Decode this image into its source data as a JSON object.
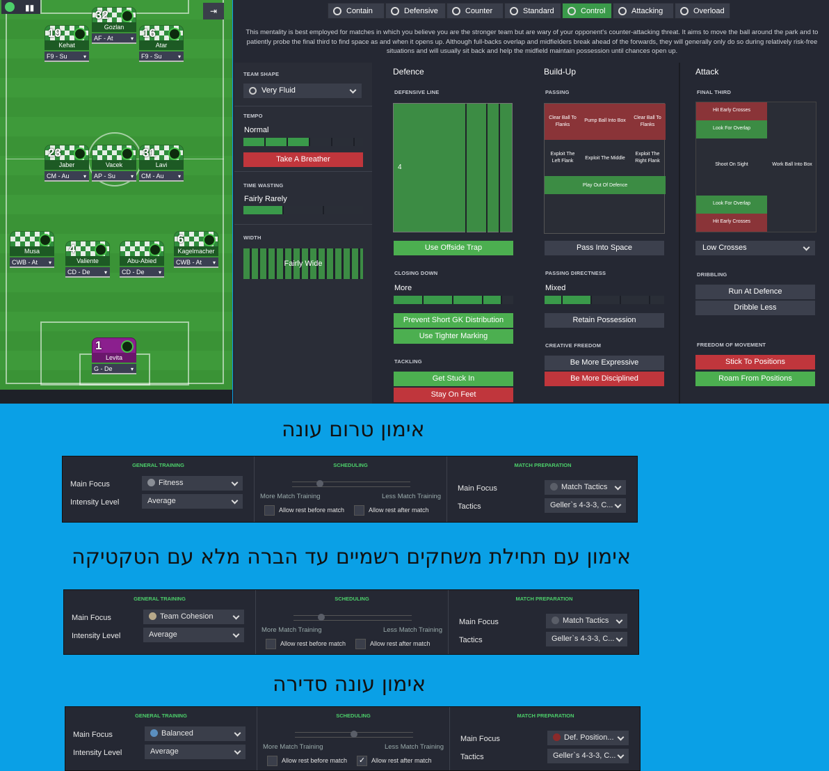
{
  "pitch": {
    "players": [
      {
        "num": "32",
        "name": "Gozlan",
        "role": "AF - At"
      },
      {
        "num": "19",
        "name": "Kehat",
        "role": "F9 - Su"
      },
      {
        "num": "16",
        "name": "Atar",
        "role": "F9 - Su"
      },
      {
        "num": "23",
        "name": "Jaber",
        "role": "CM - Au"
      },
      {
        "num": "",
        "name": "Vacek",
        "role": "AP - Su"
      },
      {
        "num": "31",
        "name": "Lavi",
        "role": "CM - Au"
      },
      {
        "num": "",
        "name": "Musa",
        "role": "CWB - At"
      },
      {
        "num": "4",
        "name": "Valiente",
        "role": "CD - De"
      },
      {
        "num": "",
        "name": "Abu-Abied",
        "role": "CD - De"
      },
      {
        "num": "6",
        "name": "Kagelmacher",
        "role": "CWB - At"
      },
      {
        "num": "1",
        "name": "Levita",
        "role": "G - De"
      }
    ]
  },
  "mentalities": [
    "Contain",
    "Defensive",
    "Counter",
    "Standard",
    "Control",
    "Attacking",
    "Overload"
  ],
  "mentality_active": "Control",
  "description": "This mentality is best employed for matches in which you believe you are the stronger team but are wary of your opponent's counter-attacking threat. It aims to move the ball around the park and to patiently probe the final third to find space as and when it opens up. Although full-backs overlap and midfielders break ahead of the forwards, they will generally only do so during relatively risk-free situations and will usually sit back and help the midfield maintain possession until chances open up.",
  "left": {
    "team_shape_label": "TEAM SHAPE",
    "team_shape": "Very Fluid",
    "tempo_label": "TEMPO",
    "tempo": "Normal",
    "tempo_btn": "Take A Breather",
    "time_wasting_label": "TIME WASTING",
    "time_wasting": "Fairly Rarely",
    "width_label": "WIDTH",
    "width": "Fairly Wide"
  },
  "defence": {
    "title": "Defence",
    "line_label": "DEFENSIVE LINE",
    "line_value": "4",
    "offside": "Use Offside Trap",
    "closing_label": "CLOSING DOWN",
    "closing": "More",
    "gk_dist": "Prevent Short GK Distribution",
    "marking": "Use Tighter Marking",
    "tackling_label": "TACKLING",
    "stuck_in": "Get Stuck In",
    "stay_feet": "Stay On Feet"
  },
  "buildup": {
    "title": "Build-Up",
    "passing_label": "PASSING",
    "cells": [
      "Clear Ball To Flanks",
      "Pump Ball Into Box",
      "Clear Ball To Flanks",
      "Exploit The Left Flank",
      "Exploit The Middle",
      "Exploit The Right Flank",
      "Play Out Of Defence"
    ],
    "pass_space": "Pass Into Space",
    "directness_label": "PASSING DIRECTNESS",
    "directness": "Mixed",
    "retain": "Retain Possession",
    "creative_label": "CREATIVE FREEDOM",
    "expressive": "Be More Expressive",
    "disciplined": "Be More Disciplined"
  },
  "attack": {
    "title": "Attack",
    "final_third_label": "FINAL THIRD",
    "cells": [
      "Hit Early Crosses",
      "Look For Overlap",
      "Shoot On Sight",
      "Work Ball Into Box",
      "Look For Overlap",
      "Hit Early Crosses"
    ],
    "crosses": "Low Crosses",
    "dribbling_label": "DRIBBLING",
    "run_at": "Run At Defence",
    "dribble_less": "Dribble Less",
    "freedom_label": "FREEDOM OF MOVEMENT",
    "stick": "Stick To Positions",
    "roam": "Roam From Positions"
  },
  "headings": [
    "אימון טרום עונה",
    "אימון עם תחילת משחקים רשמיים עד הברה מלא עם הטקטיקה",
    "אימון עונה סדירה"
  ],
  "training_common": {
    "general": "GENERAL TRAINING",
    "scheduling": "SCHEDULING",
    "match_prep": "MATCH PREPARATION",
    "main_focus": "Main Focus",
    "intensity": "Intensity Level",
    "tactics": "Tactics",
    "more": "More Match Training",
    "less": "Less Match Training",
    "rest_before": "Allow rest before match",
    "rest_after": "Allow rest after match"
  },
  "training": [
    {
      "focus": "Fitness",
      "focus_color": "#8a8e96",
      "intensity": "Average",
      "slider": 0.22,
      "mp_focus": "Match Tactics",
      "mp_color": "#5a5e68",
      "tactics": "Geller`s 4-3-3, C...",
      "rest_after": false
    },
    {
      "focus": "Team Cohesion",
      "focus_color": "#b8a98a",
      "intensity": "Average",
      "slider": 0.22,
      "mp_focus": "Match Tactics",
      "mp_color": "#5a5e68",
      "tactics": "Geller`s 4-3-3, C...",
      "rest_after": false
    },
    {
      "focus": "Balanced",
      "focus_color": "#5b8fbf",
      "intensity": "Average",
      "slider": 0.5,
      "mp_focus": "Def. Position...",
      "mp_color": "#8b2a2a",
      "tactics": "Geller`s 4-3-3, C...",
      "rest_after": true
    }
  ]
}
